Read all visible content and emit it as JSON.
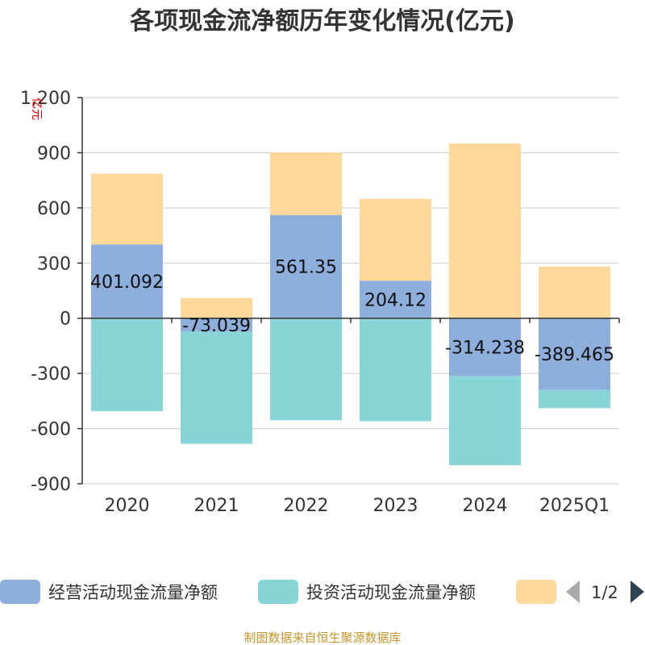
{
  "title": "各项现金流净额历年变化情况(亿元)",
  "source": "制图数据来自恒生聚源数据库",
  "legend": {
    "page_label": "1/2",
    "items": [
      {
        "label": "经营活动现金流量净额",
        "color": "#8eaedb"
      },
      {
        "label": "投资活动现金流量净额",
        "color": "#88d5d8"
      },
      {
        "label": "",
        "color": "#fed99b"
      }
    ]
  },
  "chart_data": {
    "type": "bar",
    "stacked": true,
    "ylabel": "亿元",
    "ylim": [
      -900,
      1200
    ],
    "yticks": [
      -900,
      -600,
      -300,
      0,
      300,
      600,
      900,
      1200
    ],
    "ytick_labels": [
      "-900",
      "-600",
      "-300",
      "0",
      "300",
      "600",
      "900",
      "1,200"
    ],
    "grid": true,
    "categories": [
      "2020",
      "2021",
      "2022",
      "2023",
      "2024",
      "2025Q1"
    ],
    "series": [
      {
        "name": "经营活动现金流量净额",
        "color": "#8eaedb",
        "values": [
          401.092,
          -73.039,
          561.35,
          204.12,
          -314.238,
          -389.465
        ],
        "labels": [
          "401.092",
          "-73.039",
          "561.35",
          "204.12",
          "-314.238",
          "-389.465"
        ]
      },
      {
        "name": "投资活动现金流量净额",
        "color": "#88d5d8",
        "values": [
          -505,
          -610,
          -555,
          -560,
          -485,
          -100
        ]
      },
      {
        "color": "#fed99b",
        "values": [
          385,
          110,
          340,
          445,
          950,
          280
        ]
      }
    ]
  }
}
